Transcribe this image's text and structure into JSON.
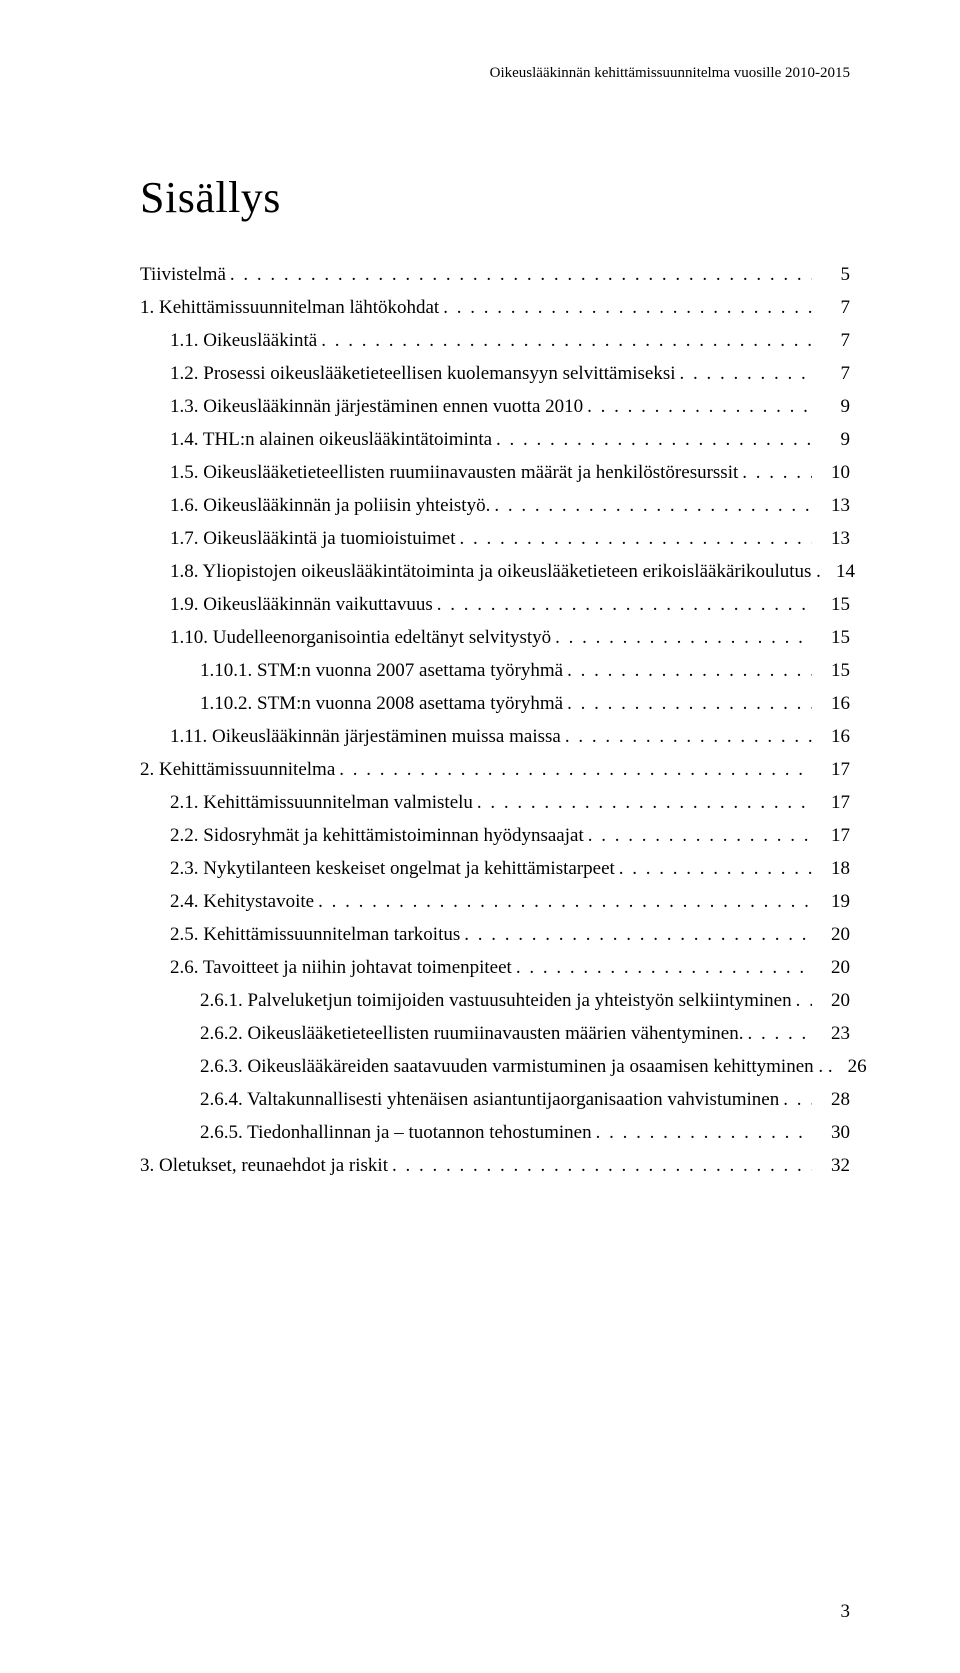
{
  "running_head": "Oikeuslääkinnän kehittämissuunnitelma vuosille 2010-2015",
  "doc_title": "Sisällys",
  "page_number": "3",
  "toc": [
    {
      "indent": 0,
      "label": "Tiivistelmä",
      "page": "5"
    },
    {
      "indent": 0,
      "label": "1. Kehittämissuunnitelman lähtökohdat",
      "page": "7"
    },
    {
      "indent": 1,
      "label": "1.1. Oikeuslääkintä",
      "page": "7"
    },
    {
      "indent": 1,
      "label": "1.2. Prosessi oikeuslääketieteellisen kuolemansyyn selvittämiseksi",
      "page": "7"
    },
    {
      "indent": 1,
      "label": "1.3. Oikeuslääkinnän järjestäminen ennen vuotta 2010",
      "page": "9"
    },
    {
      "indent": 1,
      "label": "1.4. THL:n alainen oikeuslääkintätoiminta",
      "page": "9"
    },
    {
      "indent": 1,
      "label": "1.5. Oikeuslääketieteellisten ruumiinavausten määrät ja henkilöstöresurssit",
      "page": "10"
    },
    {
      "indent": 1,
      "label": "1.6. Oikeuslääkinnän ja poliisin yhteistyö.",
      "page": "13"
    },
    {
      "indent": 1,
      "label": "1.7. Oikeuslääkintä ja tuomioistuimet",
      "page": "13"
    },
    {
      "indent": 1,
      "label": "1.8. Yliopistojen oikeuslääkintätoiminta ja oikeuslääketieteen erikoislääkärikoulutus .",
      "page": "14",
      "nodots": true
    },
    {
      "indent": 1,
      "label": "1.9. Oikeuslääkinnän vaikuttavuus",
      "page": "15"
    },
    {
      "indent": 1,
      "label": "1.10. Uudelleenorganisointia edeltänyt selvitystyö",
      "page": "15"
    },
    {
      "indent": 2,
      "label": "1.10.1. STM:n vuonna 2007 asettama työryhmä",
      "page": "15"
    },
    {
      "indent": 2,
      "label": "1.10.2. STM:n vuonna 2008 asettama työryhmä",
      "page": "16"
    },
    {
      "indent": 1,
      "label": "1.11. Oikeuslääkinnän järjestäminen muissa maissa",
      "page": "16"
    },
    {
      "indent": 0,
      "label": "2. Kehittämissuunnitelma",
      "page": "17"
    },
    {
      "indent": 1,
      "label": "2.1. Kehittämissuunnitelman valmistelu",
      "page": "17"
    },
    {
      "indent": 1,
      "label": "2.2. Sidosryhmät ja kehittämistoiminnan hyödynsaajat",
      "page": "17"
    },
    {
      "indent": 1,
      "label": "2.3. Nykytilanteen keskeiset ongelmat ja kehittämistarpeet",
      "page": "18"
    },
    {
      "indent": 1,
      "label": "2.4. Kehitystavoite",
      "page": "19"
    },
    {
      "indent": 1,
      "label": "2.5. Kehittämissuunnitelman tarkoitus",
      "page": "20"
    },
    {
      "indent": 1,
      "label": "2.6. Tavoitteet ja niihin johtavat toimenpiteet",
      "page": "20"
    },
    {
      "indent": 2,
      "label": "2.6.1. Palveluketjun toimijoiden vastuusuhteiden ja yhteistyön selkiintyminen",
      "page": "20"
    },
    {
      "indent": 2,
      "label": "2.6.2. Oikeuslääketieteellisten ruumiinavausten määrien vähentyminen.",
      "page": "23"
    },
    {
      "indent": 2,
      "label": "2.6.3. Oikeuslääkäreiden saatavuuden varmistuminen ja osaamisen kehittyminen . .",
      "page": "26",
      "nodots": true
    },
    {
      "indent": 2,
      "label": "2.6.4. Valtakunnallisesti yhtenäisen asiantuntijaorganisaation vahvistuminen",
      "page": "28"
    },
    {
      "indent": 2,
      "label": "2.6.5. Tiedonhallinnan ja – tuotannon tehostuminen",
      "page": "30"
    },
    {
      "indent": 0,
      "label": "3. Oletukset, reunaehdot ja riskit",
      "page": "32"
    }
  ]
}
